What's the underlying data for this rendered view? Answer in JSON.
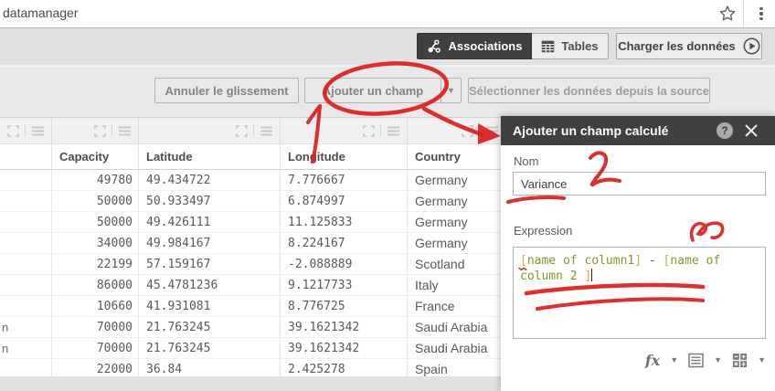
{
  "browser": {
    "url_text": "datamanager"
  },
  "toolbar": {
    "associations_label": "Associations",
    "tables_label": "Tables",
    "load_data_label": "Charger les données"
  },
  "actions_bar": {
    "undo_label": "Annuler le glissement",
    "add_field_label": "Ajouter un champ",
    "add_field_caret": "▼",
    "select_source_label": "Sélectionner les données depuis la source"
  },
  "table": {
    "columns": [
      "",
      "Capacity",
      "Latitude",
      "Longitude",
      "Country"
    ],
    "rows": [
      [
        "",
        "49780",
        "49.434722",
        "7.776667",
        "Germany"
      ],
      [
        "",
        "50000",
        "50.933497",
        "6.874997",
        "Germany"
      ],
      [
        "",
        "50000",
        "49.426111",
        "11.125833",
        "Germany"
      ],
      [
        "",
        "34000",
        "49.984167",
        "8.224167",
        "Germany"
      ],
      [
        "",
        "22199",
        "57.159167",
        "-2.088889",
        "Scotland"
      ],
      [
        "",
        "86000",
        "45.4781236",
        "9.1217733",
        "Italy"
      ],
      [
        "",
        "10660",
        "41.931081",
        "8.776725",
        "France"
      ],
      [
        "n",
        "70000",
        "21.763245",
        "39.1621342",
        "Saudi Arabia"
      ],
      [
        "n",
        "70000",
        "21.763245",
        "39.1621342",
        "Saudi Arabia"
      ],
      [
        "",
        "22000",
        "36.84",
        "2.425278",
        "Spain"
      ]
    ]
  },
  "panel": {
    "title": "Ajouter un champ calculé",
    "help_glyph": "?",
    "name_label": "Nom",
    "name_value": "Variance",
    "expression_label": "Expression",
    "expression_plain": "[name of column1] - [name of column 2 ]",
    "expression_lines": [
      [
        {
          "t": "[",
          "c": "bracket"
        },
        {
          "t": "name of column1",
          "c": "field"
        },
        {
          "t": "]",
          "c": "bracket"
        },
        {
          "t": " - ",
          "c": "op"
        },
        {
          "t": "[",
          "c": "bracket"
        },
        {
          "t": "name of",
          "c": "field"
        }
      ],
      [
        {
          "t": "column 2 ",
          "c": "field"
        },
        {
          "t": "]",
          "c": "bracket"
        }
      ]
    ],
    "footer": {
      "fx_label": "fx"
    }
  },
  "colors": {
    "annotation_red": "#de1c1c",
    "panel_header": "#404040",
    "selected_tab_bg": "#404040",
    "expr_bracket": "#e9a23b",
    "expr_field_green": "#7a9c24",
    "name_tail_blue": "#5f6b96"
  }
}
